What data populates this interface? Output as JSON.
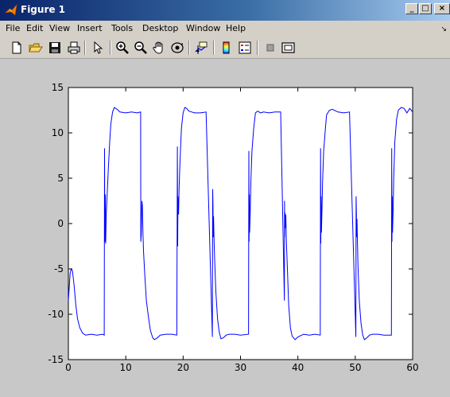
{
  "window": {
    "title": "Figure 1"
  },
  "menu": {
    "items": [
      "File",
      "Edit",
      "View",
      "Insert",
      "Tools",
      "Desktop",
      "Window",
      "Help"
    ]
  },
  "toolbar": {
    "buttons": [
      "new-figure",
      "open-file",
      "save",
      "print",
      "edit-plot-arrow",
      "zoom-in",
      "zoom-out",
      "pan-hand",
      "rotate-3d",
      "data-cursor",
      "insert-colorbar",
      "insert-legend",
      "hide-plot-tools",
      "show-plot-tools"
    ]
  },
  "chart_data": {
    "type": "line",
    "title": "",
    "xlabel": "",
    "ylabel": "",
    "xlim": [
      0,
      60
    ],
    "ylim": [
      -15,
      15
    ],
    "x_ticks": [
      "0",
      "10",
      "20",
      "30",
      "40",
      "50",
      "60"
    ],
    "y_ticks": [
      "15",
      "10",
      "5",
      "0",
      "-5",
      "-10",
      "-15"
    ],
    "grid": false,
    "series": [
      {
        "color": "#0000ff",
        "x": [
          0,
          0.3,
          0.5,
          0.7,
          1.0,
          1.3,
          1.6,
          2.0,
          2.5,
          3.0,
          4.0,
          5.0,
          6.0,
          6.25,
          6.3,
          6.35,
          6.4,
          6.45,
          6.5,
          6.55,
          6.6,
          6.75,
          7.0,
          7.2,
          7.4,
          7.7,
          8.0,
          8.5,
          9.0,
          10.0,
          11.0,
          12.0,
          12.6,
          12.62,
          12.7,
          12.8,
          12.9,
          13.0,
          13.1,
          13.3,
          13.6,
          14.0,
          14.3,
          14.7,
          15.0,
          15.5,
          16.0,
          17.0,
          18.0,
          18.9,
          19.0,
          19.05,
          19.1,
          19.2,
          19.3,
          19.5,
          19.7,
          20.0,
          20.3,
          20.6,
          21.0,
          21.5,
          22.0,
          23.0,
          24.0,
          25.1,
          25.15,
          25.2,
          25.25,
          25.3,
          25.4,
          25.5,
          25.7,
          26.0,
          26.3,
          26.6,
          27.0,
          27.5,
          28.0,
          29.0,
          30.0,
          31.4,
          31.45,
          31.5,
          31.55,
          31.6,
          31.7,
          31.8,
          32.0,
          32.3,
          32.6,
          33.0,
          33.5,
          34.0,
          35.0,
          36.0,
          37.0,
          37.65,
          37.68,
          37.7,
          37.75,
          37.8,
          37.9,
          38.0,
          38.2,
          38.4,
          38.7,
          39.0,
          39.5,
          40.0,
          41.0,
          42.0,
          43.0,
          43.9,
          43.95,
          44.0,
          44.05,
          44.1,
          44.2,
          44.3,
          44.5,
          44.8,
          45.0,
          45.5,
          46.0,
          47.0,
          48.0,
          49.0,
          50.1,
          50.15,
          50.2,
          50.25,
          50.3,
          50.4,
          50.5,
          50.7,
          51.0,
          51.3,
          51.6,
          52.0,
          52.5,
          53.0,
          54.0,
          55.0,
          56.3,
          56.35,
          56.4,
          56.45,
          56.5,
          56.6,
          56.7,
          56.9,
          57.2,
          57.5,
          58.0,
          58.5,
          59.0,
          59.5,
          60.0
        ],
        "y": [
          -8.5,
          -5.5,
          -5.0,
          -5.2,
          -6.8,
          -9.0,
          -10.5,
          -11.5,
          -12.1,
          -12.3,
          -12.2,
          -12.3,
          -12.2,
          -12.3,
          8.3,
          -2.0,
          -1.5,
          3.2,
          -2.2,
          -0.5,
          1.0,
          3.0,
          6.5,
          9.0,
          11.0,
          12.3,
          12.8,
          12.6,
          12.3,
          12.2,
          12.3,
          12.2,
          12.3,
          -2.0,
          -1.2,
          2.5,
          2.0,
          -1.0,
          -3.0,
          -5.5,
          -8.5,
          -10.5,
          -11.8,
          -12.6,
          -12.8,
          -12.6,
          -12.3,
          -12.2,
          -12.2,
          -12.3,
          8.5,
          -2.5,
          3.0,
          1.0,
          4.0,
          7.5,
          10.5,
          12.2,
          12.8,
          12.7,
          12.4,
          12.3,
          12.2,
          12.2,
          12.3,
          -12.5,
          3.8,
          2.0,
          -1.5,
          0.8,
          -2.0,
          -4.0,
          -7.5,
          -10.5,
          -12.0,
          -12.7,
          -12.6,
          -12.3,
          -12.2,
          -12.2,
          -12.3,
          -12.2,
          8.0,
          -2.0,
          3.2,
          -1.0,
          1.5,
          4.5,
          8.0,
          10.5,
          12.2,
          12.4,
          12.2,
          12.3,
          12.2,
          12.3,
          12.3,
          -8.5,
          2.5,
          -1.5,
          1.2,
          -0.5,
          1.0,
          -2.0,
          -5.5,
          -9.0,
          -11.5,
          -12.4,
          -12.8,
          -12.5,
          -12.2,
          -12.3,
          -12.2,
          -12.3,
          8.3,
          -2.2,
          3.0,
          -1.0,
          1.5,
          4.5,
          8.0,
          10.5,
          12.0,
          12.5,
          12.6,
          12.3,
          12.2,
          12.3,
          -12.5,
          3.0,
          1.0,
          -1.5,
          0.5,
          -2.5,
          -5.0,
          -8.5,
          -11.0,
          -12.3,
          -12.8,
          -12.6,
          -12.3,
          -12.2,
          -12.2,
          -12.3,
          -12.3,
          8.3,
          -2.0,
          3.0,
          -1.0,
          1.5,
          5.0,
          9.0,
          11.5,
          12.5,
          12.8,
          12.7,
          12.2,
          12.7,
          12.3
        ]
      }
    ]
  }
}
